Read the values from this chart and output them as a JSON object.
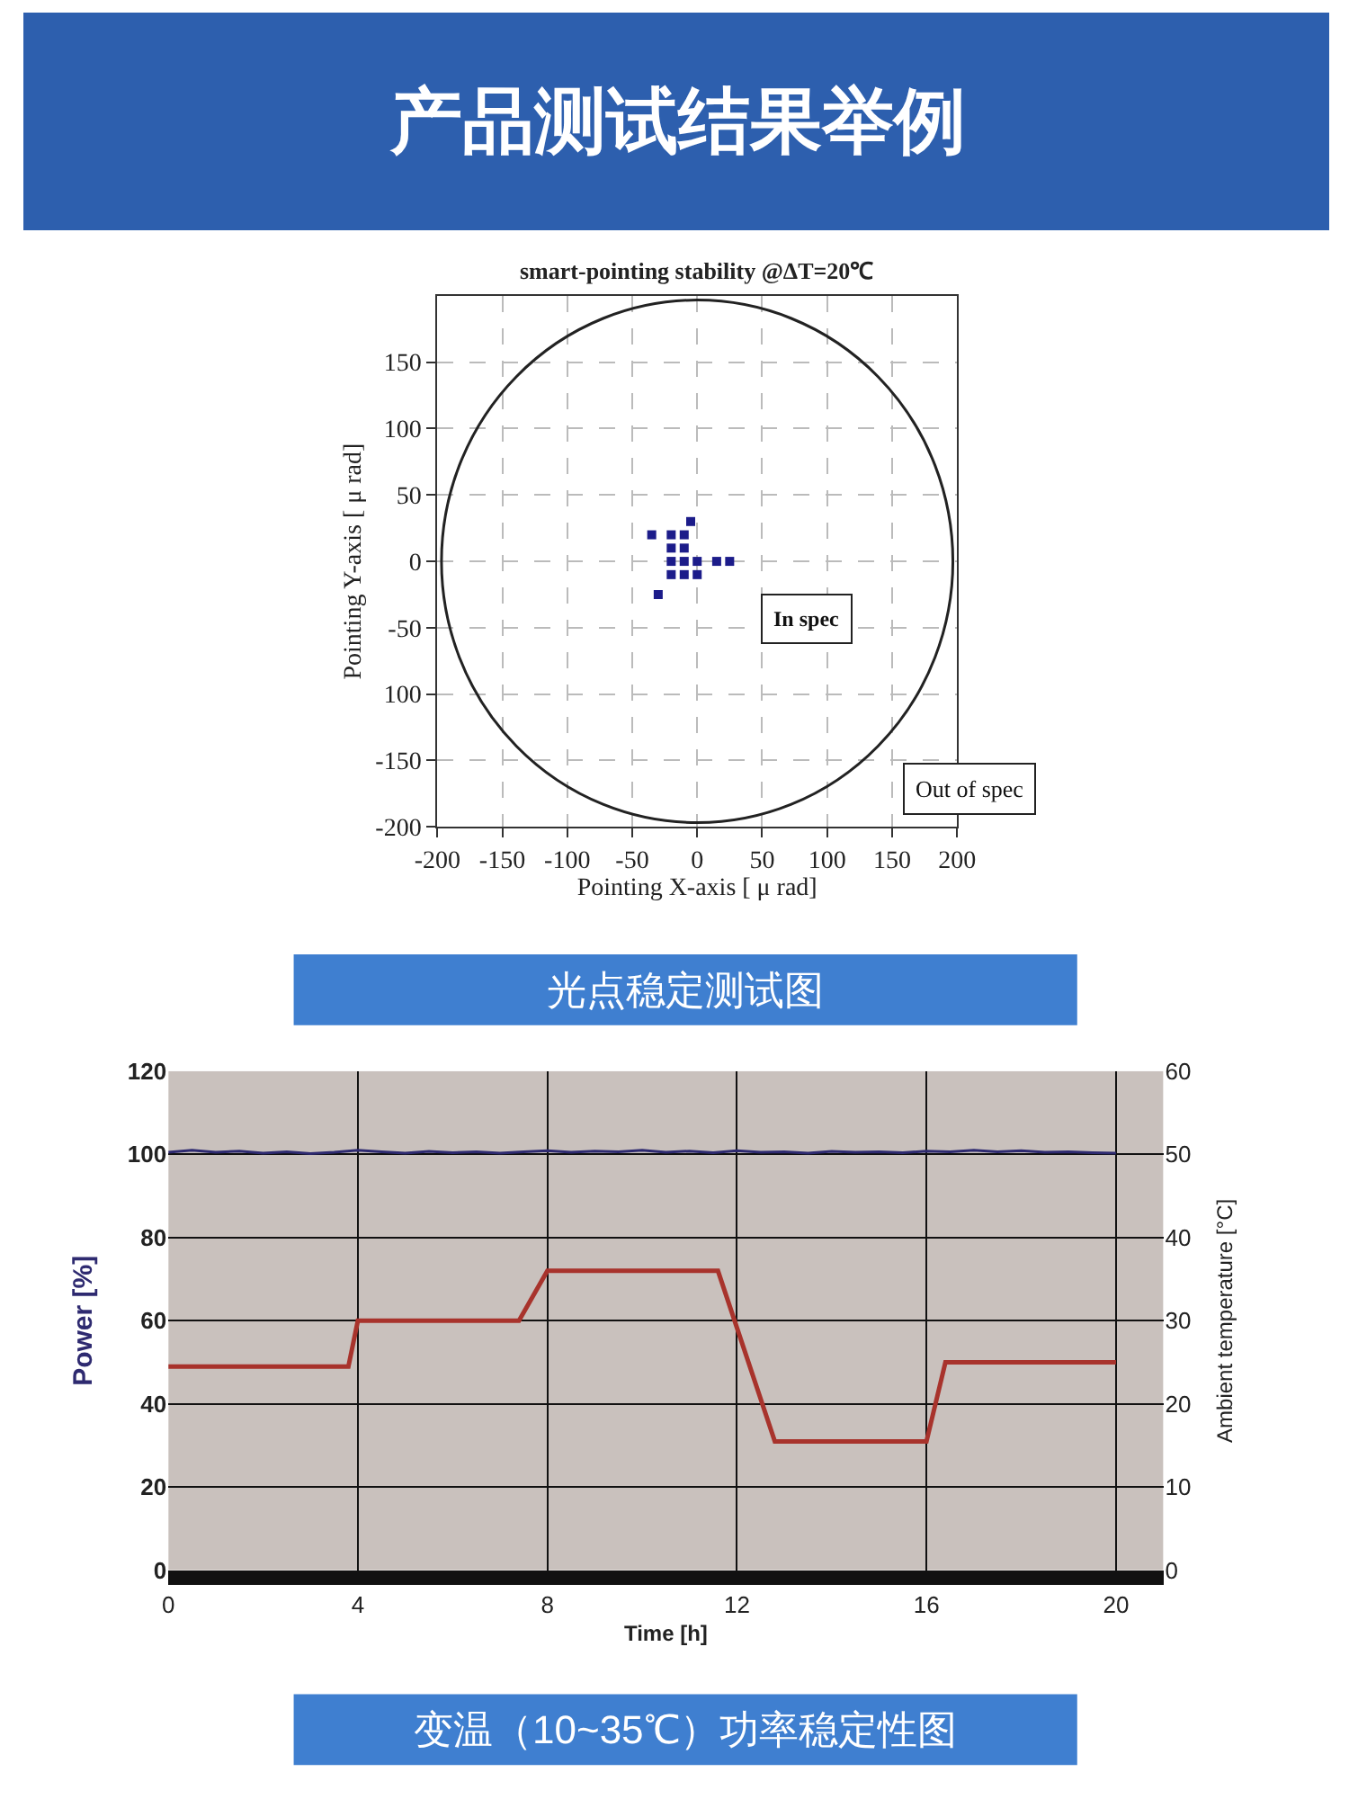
{
  "chart_data": [
    {
      "type": "scatter",
      "title": "smart-pointing stability @ΔT=20℃",
      "xlabel": "Pointing X-axis [ μ rad]",
      "ylabel": "Pointing Y-axis [ μ rad]",
      "xlim": [
        -200,
        200
      ],
      "ylim": [
        -200,
        200
      ],
      "xticks": [
        -200,
        -150,
        -100,
        -50,
        0,
        50,
        100,
        150,
        200
      ],
      "yticks": [
        -200,
        -150,
        {
          "value": -100,
          "label": "100"
        },
        -50,
        0,
        50,
        100,
        150
      ],
      "grid": true,
      "marker": "square",
      "series": [
        {
          "type": "scatter",
          "color": "#1c1c8a",
          "x": [
            -20,
            -10,
            -20,
            -10,
            -20,
            -10,
            0,
            -20,
            -10,
            0,
            -30,
            -35,
            -5,
            15,
            25
          ],
          "values": [
            20,
            20,
            10,
            10,
            0,
            0,
            0,
            -10,
            -10,
            -10,
            -25,
            20,
            30,
            0,
            0
          ]
        }
      ],
      "annotations": [
        "产品测试结果举例",
        "In spec",
        "Out of spec",
        "光点稳定测试图"
      ]
    },
    {
      "type": "line",
      "xlabel": "Time [h]",
      "ylabel": "Power [%]",
      "y2label": "Ambient temperature [°C]",
      "xlim": [
        0,
        21
      ],
      "xticks": [
        0,
        4,
        8,
        12,
        16,
        20
      ],
      "ylim": [
        0,
        120
      ],
      "yticks": [
        0,
        20,
        40,
        60,
        80,
        100,
        120
      ],
      "y2lim": [
        0,
        60
      ],
      "y2ticks": [
        0,
        10,
        20,
        30,
        40,
        50,
        60
      ],
      "grid": true,
      "series": [
        {
          "color": "#2e2a70",
          "x": [
            0,
            0.5,
            1,
            1.5,
            2,
            2.5,
            3,
            3.5,
            4,
            4.5,
            5,
            5.5,
            6,
            6.5,
            7,
            7.5,
            8,
            8.5,
            9,
            9.5,
            10,
            10.5,
            11,
            11.5,
            12,
            12.5,
            13,
            13.5,
            14,
            14.5,
            15,
            15.5,
            16,
            16.5,
            17,
            17.5,
            18,
            18.5,
            19,
            19.5,
            20
          ],
          "values": [
            100.5,
            101,
            100.5,
            100.8,
            100.3,
            100.6,
            100.2,
            100.5,
            101,
            100.6,
            100.3,
            100.7,
            100.4,
            100.6,
            100.3,
            100.6,
            100.9,
            100.5,
            100.8,
            100.6,
            101,
            100.5,
            100.8,
            100.4,
            100.9,
            100.5,
            100.6,
            100.3,
            100.7,
            100.5,
            100.6,
            100.4,
            100.8,
            100.6,
            101,
            100.6,
            100.9,
            100.5,
            100.6,
            100.4,
            100.3
          ]
        },
        {
          "color": "#a8332c",
          "axis": "y2",
          "x": [
            0,
            3.8,
            4,
            7.4,
            8,
            11.6,
            12.8,
            16,
            16.4,
            20
          ],
          "values": [
            24.5,
            24.5,
            30,
            30,
            36,
            36,
            15.5,
            15.5,
            25,
            25
          ]
        }
      ],
      "annotations": [
        "变温（10~35℃）功率稳定性图"
      ]
    }
  ]
}
